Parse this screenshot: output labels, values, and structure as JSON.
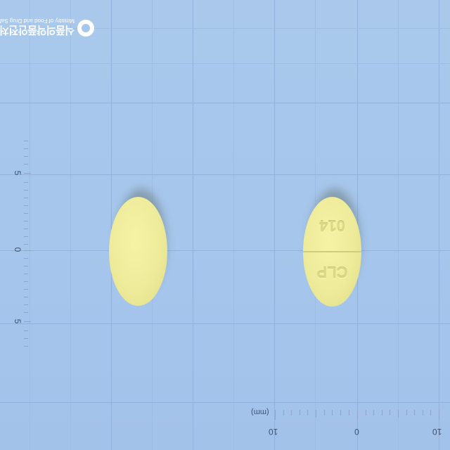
{
  "logo": {
    "korean": "식품의약품안전처",
    "english": "Ministry of Food and Drug Safety"
  },
  "ruler_vertical": {
    "labels": [
      "5",
      "0",
      "5"
    ]
  },
  "ruler_horizontal": {
    "unit": "(mm)",
    "labels": [
      "10",
      "0",
      "10"
    ]
  },
  "pill_back": {
    "color": "#eeeb9a"
  },
  "pill_front": {
    "color": "#eeeb9a",
    "imprint_top": "014",
    "imprint_bottom": "CLP"
  },
  "colors": {
    "background": "#a6c6ec",
    "grid": "#91b1da",
    "pill": "#eeeb9a"
  }
}
